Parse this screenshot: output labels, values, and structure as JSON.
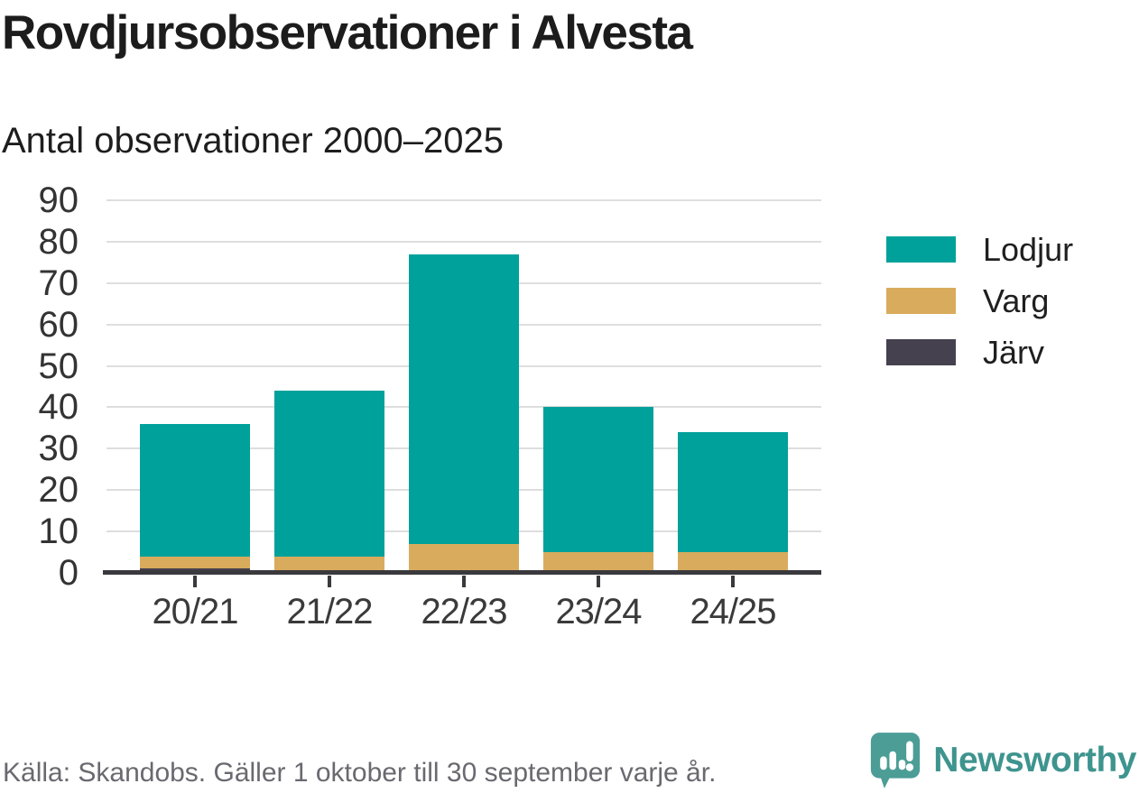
{
  "page": {
    "title": "Rovdjursobservationer i Alvesta",
    "subtitle": "Antal observationer 2000–2025",
    "source_note": "Källa: Skandobs. Gäller 1 oktober till 30 september varje år.",
    "logo_text": "Newsworthy"
  },
  "colors": {
    "lodjur": "#00a19a",
    "varg": "#d9ab5c",
    "jarv": "#45414e",
    "axis": "#3a393d",
    "gridline": "#dedede",
    "title_text": "#1c1c1c",
    "tick_text": "#333333",
    "source_text": "#696970",
    "logo_teal": "#3e948e",
    "logo_icon_teal": "#4c9d96"
  },
  "icons": {
    "logo_icon": "newsworthy-speech-bubble-bar-chart-icon"
  },
  "chart_data": {
    "type": "bar",
    "stacked": true,
    "title": "Rovdjursobservationer i Alvesta",
    "subtitle": "Antal observationer 2000–2025",
    "xlabel": "",
    "ylabel": "",
    "categories": [
      "20/21",
      "21/22",
      "22/23",
      "23/24",
      "24/25"
    ],
    "series": [
      {
        "name": "Lodjur",
        "color": "#00a19a",
        "values": [
          32,
          40,
          70,
          35,
          29
        ]
      },
      {
        "name": "Varg",
        "color": "#d9ab5c",
        "values": [
          3,
          4,
          7,
          5,
          5
        ]
      },
      {
        "name": "Järv",
        "color": "#45414e",
        "values": [
          1,
          0,
          0,
          0,
          0
        ]
      }
    ],
    "stack_bottom_to_top": [
      "Järv",
      "Varg",
      "Lodjur"
    ],
    "totals": [
      36,
      44,
      77,
      40,
      34
    ],
    "ylim": [
      0,
      90
    ],
    "yticks": [
      0,
      10,
      20,
      30,
      40,
      50,
      60,
      70,
      80,
      90
    ],
    "grid": true,
    "legend_position": "right",
    "legend": [
      "Lodjur",
      "Varg",
      "Järv"
    ]
  }
}
